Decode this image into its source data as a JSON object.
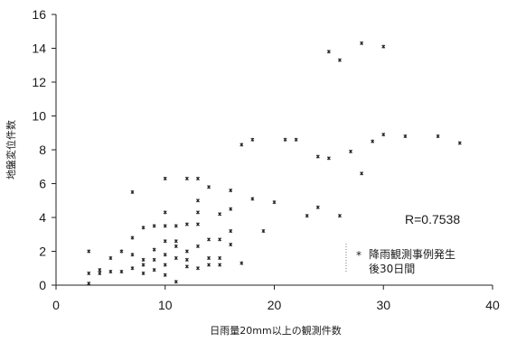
{
  "chart_data": {
    "type": "scatter",
    "title": "",
    "xlabel": "日雨量20mm以上の観測件数",
    "ylabel": "地盤変位件数",
    "xlim": [
      0,
      40
    ],
    "ylim": [
      0,
      16
    ],
    "xticks": [
      0,
      10,
      20,
      30,
      40
    ],
    "yticks": [
      0,
      2,
      4,
      6,
      8,
      10,
      12,
      14,
      16
    ],
    "grid": false,
    "annotation_r": "R=0.7538",
    "legend": {
      "symbol": "*",
      "line1": "降雨観測事例発生",
      "line2": "後30日間",
      "placement": "bottom-right"
    },
    "point_color": "#222222",
    "series": [
      {
        "x": [
          3,
          3,
          3,
          4,
          4,
          5,
          5,
          6,
          6,
          7,
          7,
          7,
          7,
          8,
          8,
          8,
          8,
          9,
          9,
          9,
          9,
          10,
          10,
          10,
          10,
          10,
          10,
          10,
          11,
          11,
          11,
          11,
          11,
          12,
          12,
          12,
          12,
          12,
          13,
          13,
          13,
          13,
          13,
          13,
          14,
          14,
          14,
          14,
          15,
          15,
          15,
          15,
          16,
          16,
          16,
          16,
          17,
          17,
          18,
          18,
          19,
          20,
          21,
          22,
          23,
          24,
          24,
          25,
          25,
          26,
          26,
          27,
          28,
          28,
          29,
          30,
          30,
          32,
          35,
          37
        ],
        "y": [
          2.0,
          0.7,
          0.1,
          0.9,
          0.7,
          1.6,
          0.8,
          2.0,
          0.8,
          5.5,
          2.8,
          1.8,
          1.0,
          3.4,
          1.5,
          1.2,
          0.7,
          3.5,
          2.1,
          1.5,
          0.9,
          6.3,
          4.3,
          3.5,
          2.6,
          1.8,
          1.2,
          0.6,
          3.5,
          2.6,
          2.3,
          1.6,
          0.2,
          6.3,
          3.6,
          2.0,
          1.5,
          1.1,
          6.3,
          5.0,
          4.3,
          3.6,
          2.3,
          1.0,
          5.8,
          2.7,
          1.6,
          1.2,
          4.2,
          2.7,
          1.6,
          1.2,
          5.6,
          4.5,
          3.2,
          2.4,
          8.3,
          1.3,
          8.6,
          5.1,
          3.2,
          4.9,
          8.6,
          8.6,
          4.1,
          7.6,
          4.6,
          13.8,
          7.5,
          13.3,
          4.1,
          7.9,
          14.3,
          6.6,
          8.5,
          14.1,
          8.9,
          8.8,
          8.8,
          8.4
        ]
      }
    ]
  }
}
